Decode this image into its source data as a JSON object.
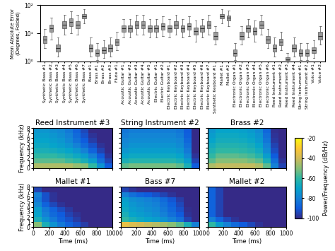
{
  "chart_data": [
    {
      "type": "box",
      "ylabel": "Mean Absolute Error\n(Degrees, Folded)",
      "categories": [
        "Synthetic Bass #1",
        "Synthetic Bass #2",
        "Synthetic Bass #3",
        "Synthetic Bass #4",
        "Synthetic Bass #5",
        "Synthetic Bass #6",
        "Synthetic Bass #7",
        "Bass #1",
        "Brass #1",
        "Brass #2",
        "Brass #3",
        "Flute #1",
        "Acoustic Guitar #1",
        "Acoustic Guitar #2",
        "Acoustic Guitar #3",
        "Acoustic Guitar #4",
        "Acoustic Guitar #5",
        "Electric Guitar #1",
        "Electric Guitar #2",
        "Electric Keyboard #1",
        "Electric Keyboard #2",
        "Electric Keyboard #3",
        "Electric Keyboard #4",
        "Electric Keyboard #5",
        "Electric Keyboard #6",
        "Electric Keyboard #7",
        "Synthetic Keyboard #1",
        "Mallet #1",
        "Mallet #2",
        "Electronic Organ #1",
        "Electronic Organ #2",
        "Electronic Organ #3",
        "Electronic Organ #4",
        "Electronic Organ #5",
        "Electronic Organ #6",
        "Reed Instrument #1",
        "Reed Instrument #2",
        "Reed Instrument #3",
        "Reed Instrument #4",
        "String Instrument #1",
        "String Instrument #2",
        "Voice #1",
        "Voice #2"
      ],
      "boxes": [
        [
          3,
          4.5,
          6,
          8,
          14
        ],
        [
          6,
          11,
          15,
          20,
          35
        ],
        [
          1.5,
          2.3,
          3,
          4,
          7
        ],
        [
          9,
          15,
          20,
          26,
          45
        ],
        [
          10,
          18,
          25,
          33,
          60
        ],
        [
          9,
          15,
          20,
          27,
          45
        ],
        [
          22,
          33,
          40,
          48,
          70
        ],
        [
          1.5,
          2.3,
          3,
          4,
          7
        ],
        [
          1.1,
          1.6,
          2,
          2.6,
          4.5
        ],
        [
          1.3,
          2,
          2.5,
          3.2,
          5.5
        ],
        [
          1.5,
          2.3,
          3,
          4,
          7
        ],
        [
          2.5,
          3.8,
          5,
          6.5,
          11
        ],
        [
          7,
          11,
          15,
          19,
          32
        ],
        [
          7,
          11,
          15,
          19,
          32
        ],
        [
          9,
          15,
          20,
          26,
          45
        ],
        [
          9,
          15,
          20,
          26,
          45
        ],
        [
          7,
          11,
          15,
          19,
          32
        ],
        [
          7,
          11,
          15,
          19,
          32
        ],
        [
          8,
          13,
          18,
          23,
          40
        ],
        [
          7,
          11,
          15,
          19,
          32
        ],
        [
          9,
          15,
          20,
          26,
          45
        ],
        [
          7,
          11,
          15,
          19,
          32
        ],
        [
          8,
          13,
          18,
          23,
          40
        ],
        [
          5,
          9,
          12,
          16,
          28
        ],
        [
          7,
          11,
          15,
          19,
          32
        ],
        [
          9,
          15,
          20,
          26,
          45
        ],
        [
          4,
          6,
          8,
          11,
          18
        ],
        [
          22,
          33,
          40,
          48,
          70
        ],
        [
          18,
          28,
          35,
          43,
          65
        ],
        [
          1.1,
          1.6,
          2,
          2.6,
          4.5
        ],
        [
          4,
          6,
          8,
          11,
          18
        ],
        [
          7,
          11,
          15,
          19,
          32
        ],
        [
          5,
          9,
          12,
          16,
          28
        ],
        [
          9,
          15,
          20,
          26,
          45
        ],
        [
          3,
          4.5,
          6,
          8,
          14
        ],
        [
          1.5,
          2.3,
          3,
          4,
          7
        ],
        [
          2.5,
          3.8,
          5,
          6.5,
          11
        ],
        [
          1,
          1.1,
          1.2,
          1.4,
          2
        ],
        [
          1.5,
          2.3,
          3,
          4,
          7
        ],
        [
          1.1,
          1.6,
          2,
          2.6,
          4.5
        ],
        [
          1.1,
          1.6,
          2,
          2.6,
          4.5
        ],
        [
          1.3,
          2,
          2.5,
          3.2,
          5.5
        ],
        [
          4,
          6,
          8,
          11,
          18
        ]
      ],
      "color": "#9a9a9a",
      "log": "y",
      "ylim": [
        1,
        100
      ],
      "yticks": [
        {
          "value": 1,
          "label": "10⁰"
        },
        {
          "value": 10,
          "label": "10¹"
        },
        {
          "value": 100,
          "label": "10²"
        }
      ]
    },
    {
      "type": "heatmap",
      "title": "Reed Instrument #3",
      "ylabel": "Frequency (kHz)",
      "tick_labels": "y",
      "xlim": [
        0,
        1000
      ],
      "xticks": [
        0,
        200,
        400,
        600,
        800,
        1000
      ],
      "ylim": [
        0,
        8
      ],
      "yticks": [
        0,
        1,
        2,
        3,
        4,
        5,
        6,
        7,
        8
      ],
      "cells": [
        [
          -45,
          -45,
          -45,
          -45,
          -45,
          -48,
          -50,
          -60,
          -75,
          -90
        ],
        [
          -55,
          -55,
          -55,
          -55,
          -58,
          -60,
          -65,
          -72,
          -85,
          -95
        ],
        [
          -60,
          -60,
          -60,
          -62,
          -65,
          -68,
          -72,
          -80,
          -90,
          -98
        ],
        [
          -65,
          -65,
          -66,
          -68,
          -70,
          -74,
          -80,
          -88,
          -95,
          -100
        ],
        [
          -68,
          -68,
          -70,
          -72,
          -75,
          -80,
          -86,
          -92,
          -98,
          -100
        ],
        [
          -70,
          -70,
          -72,
          -74,
          -78,
          -84,
          -90,
          -96,
          -100,
          -100
        ],
        [
          -72,
          -72,
          -74,
          -76,
          -80,
          -86,
          -92,
          -98,
          -100,
          -100
        ],
        [
          -74,
          -74,
          -76,
          -78,
          -82,
          -88,
          -94,
          -100,
          -100,
          -100
        ]
      ]
    },
    {
      "type": "heatmap",
      "title": "String Instrument #2",
      "tick_labels": false,
      "xlim": [
        0,
        1000
      ],
      "xticks": [
        0,
        200,
        400,
        600,
        800,
        1000
      ],
      "ylim": [
        0,
        8
      ],
      "yticks": [
        0,
        1,
        2,
        3,
        4,
        5,
        6,
        7,
        8
      ],
      "cells": [
        [
          -55,
          -52,
          -52,
          -52,
          -52,
          -52,
          -52,
          -55,
          -65,
          -90
        ],
        [
          -65,
          -62,
          -62,
          -62,
          -62,
          -62,
          -62,
          -65,
          -72,
          -95
        ],
        [
          -70,
          -68,
          -68,
          -68,
          -68,
          -68,
          -68,
          -70,
          -78,
          -98
        ],
        [
          -74,
          -72,
          -72,
          -72,
          -72,
          -72,
          -72,
          -74,
          -82,
          -100
        ],
        [
          -77,
          -75,
          -75,
          -75,
          -75,
          -75,
          -75,
          -77,
          -85,
          -100
        ],
        [
          -79,
          -77,
          -77,
          -77,
          -77,
          -77,
          -77,
          -79,
          -87,
          -100
        ],
        [
          -81,
          -79,
          -79,
          -79,
          -79,
          -79,
          -79,
          -81,
          -89,
          -100
        ],
        [
          -83,
          -81,
          -81,
          -81,
          -81,
          -81,
          -81,
          -83,
          -90,
          -100
        ]
      ]
    },
    {
      "type": "heatmap",
      "title": "Brass #2",
      "tick_labels": false,
      "xlim": [
        0,
        1000
      ],
      "xticks": [
        0,
        200,
        400,
        600,
        800,
        1000
      ],
      "ylim": [
        0,
        8
      ],
      "yticks": [
        0,
        1,
        2,
        3,
        4,
        5,
        6,
        7,
        8
      ],
      "cells": [
        [
          -45,
          -42,
          -42,
          -42,
          -42,
          -42,
          -45,
          -55,
          -80,
          -95
        ],
        [
          -55,
          -50,
          -50,
          -50,
          -50,
          -52,
          -55,
          -65,
          -85,
          -98
        ],
        [
          -60,
          -55,
          -55,
          -55,
          -56,
          -58,
          -62,
          -72,
          -90,
          -100
        ],
        [
          -64,
          -60,
          -60,
          -60,
          -61,
          -63,
          -67,
          -77,
          -93,
          -100
        ],
        [
          -67,
          -63,
          -63,
          -63,
          -64,
          -66,
          -70,
          -80,
          -95,
          -100
        ],
        [
          -70,
          -66,
          -66,
          -66,
          -67,
          -69,
          -73,
          -83,
          -97,
          -100
        ],
        [
          -72,
          -68,
          -68,
          -68,
          -69,
          -71,
          -75,
          -85,
          -98,
          -100
        ],
        [
          -74,
          -70,
          -70,
          -70,
          -71,
          -73,
          -77,
          -87,
          -99,
          -100
        ]
      ]
    },
    {
      "type": "heatmap",
      "title": "Mallet #1",
      "xlabel": "Time (ms)",
      "ylabel": "Frequency (kHz)",
      "tick_labels": true,
      "xlim": [
        0,
        1000
      ],
      "xticks": [
        0,
        200,
        400,
        600,
        800,
        1000
      ],
      "ylim": [
        0,
        8
      ],
      "yticks": [
        0,
        1,
        2,
        3,
        4,
        5,
        6,
        7,
        8
      ],
      "cells": [
        [
          -50,
          -65,
          -75,
          -82,
          -88,
          -92,
          -96,
          -100,
          -100,
          -100
        ],
        [
          -65,
          -75,
          -82,
          -88,
          -92,
          -96,
          -100,
          -100,
          -100,
          -100
        ],
        [
          -70,
          -80,
          -86,
          -90,
          -95,
          -98,
          -100,
          -100,
          -100,
          -100
        ],
        [
          -72,
          -82,
          -88,
          -93,
          -97,
          -100,
          -100,
          -100,
          -100,
          -100
        ],
        [
          -78,
          -88,
          -94,
          -98,
          -100,
          -100,
          -100,
          -100,
          -100,
          -100
        ],
        [
          -82,
          -92,
          -98,
          -100,
          -100,
          -100,
          -100,
          -100,
          -100,
          -100
        ],
        [
          -80,
          -92,
          -98,
          -100,
          -100,
          -100,
          -100,
          -100,
          -100,
          -100
        ],
        [
          -95,
          -100,
          -100,
          -100,
          -100,
          -100,
          -100,
          -100,
          -100,
          -100
        ]
      ]
    },
    {
      "type": "heatmap",
      "title": "Bass #7",
      "xlabel": "Time (ms)",
      "tick_labels": "x",
      "xlim": [
        0,
        1000
      ],
      "xticks": [
        0,
        200,
        400,
        600,
        800,
        1000
      ],
      "ylim": [
        0,
        8
      ],
      "yticks": [
        0,
        1,
        2,
        3,
        4,
        5,
        6,
        7,
        8
      ],
      "cells": [
        [
          -35,
          -38,
          -40,
          -42,
          -44,
          -46,
          -50,
          -55,
          -65,
          -80
        ],
        [
          -60,
          -65,
          -68,
          -70,
          -72,
          -75,
          -80,
          -85,
          -95,
          -100
        ],
        [
          -65,
          -70,
          -72,
          -74,
          -76,
          -80,
          -85,
          -90,
          -98,
          -100
        ],
        [
          -68,
          -72,
          -74,
          -76,
          -78,
          -82,
          -87,
          -92,
          -99,
          -100
        ],
        [
          -70,
          -74,
          -76,
          -78,
          -80,
          -84,
          -89,
          -94,
          -100,
          -100
        ],
        [
          -72,
          -76,
          -78,
          -80,
          -82,
          -86,
          -91,
          -96,
          -100,
          -100
        ],
        [
          -80,
          -85,
          -88,
          -90,
          -92,
          -95,
          -98,
          -100,
          -100,
          -100
        ],
        [
          -95,
          -98,
          -100,
          -100,
          -100,
          -100,
          -100,
          -100,
          -100,
          -100
        ]
      ]
    },
    {
      "type": "heatmap",
      "title": "Mallet #2",
      "xlabel": "Time (ms)",
      "tick_labels": "x",
      "xlim": [
        0,
        1000
      ],
      "xticks": [
        0,
        200,
        400,
        600,
        800,
        1000
      ],
      "ylim": [
        0,
        8
      ],
      "yticks": [
        0,
        1,
        2,
        3,
        4,
        5,
        6,
        7,
        8
      ],
      "cells": [
        [
          -60,
          -72,
          -80,
          -86,
          -90,
          -94,
          -98,
          -100,
          -100,
          -100
        ],
        [
          -80,
          -88,
          -94,
          -98,
          -100,
          -100,
          -100,
          -100,
          -100,
          -100
        ],
        [
          -88,
          -95,
          -100,
          -100,
          -100,
          -100,
          -100,
          -100,
          -100,
          -100
        ],
        [
          -88,
          -95,
          -100,
          -100,
          -100,
          -100,
          -100,
          -100,
          -100,
          -100
        ],
        [
          -88,
          -95,
          -100,
          -100,
          -100,
          -100,
          -100,
          -100,
          -100,
          -100
        ],
        [
          -88,
          -95,
          -100,
          -100,
          -100,
          -100,
          -100,
          -100,
          -100,
          -100
        ],
        [
          -88,
          -95,
          -100,
          -100,
          -100,
          -100,
          -100,
          -100,
          -100,
          -100
        ],
        [
          -88,
          -95,
          -100,
          -100,
          -100,
          -100,
          -100,
          -100,
          -100,
          -100
        ]
      ]
    }
  ],
  "colorbar": {
    "label": "Power/Frequency (dB/Hz)",
    "range": [
      -100,
      -20
    ],
    "ticks": [
      -100,
      -80,
      -60,
      -40,
      -20
    ]
  }
}
